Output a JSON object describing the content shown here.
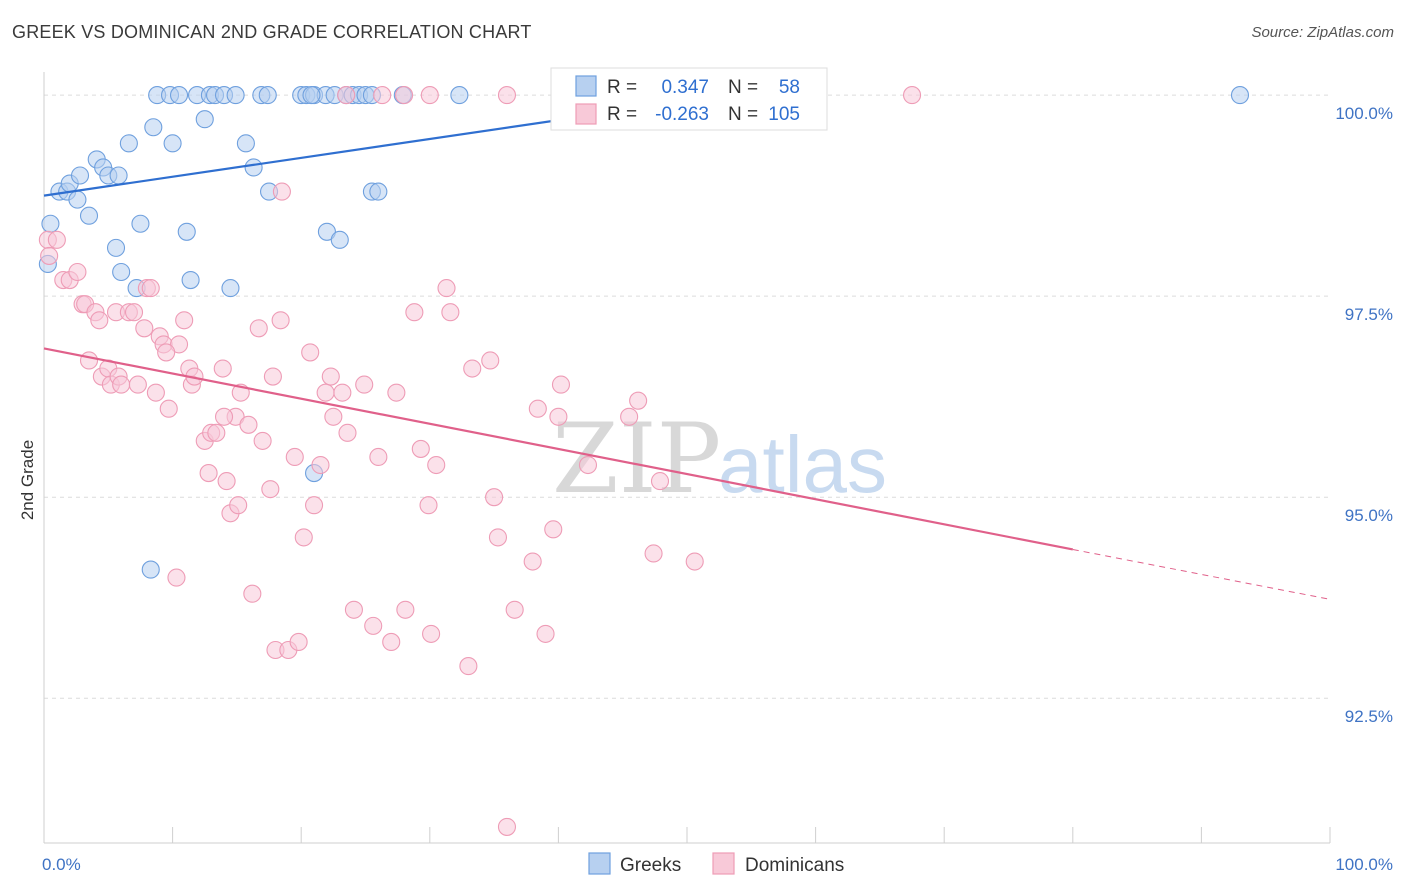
{
  "title": "GREEK VS DOMINICAN 2ND GRADE CORRELATION CHART",
  "source": "Source: ZipAtlas.com",
  "watermark": {
    "part1": "ZIP",
    "part2": "atlas"
  },
  "chart_data": {
    "type": "scatter",
    "title": "GREEK VS DOMINICAN 2ND GRADE CORRELATION CHART",
    "xlabel": "",
    "ylabel": "2nd Grade",
    "xlim": [
      0,
      100
    ],
    "ylim": [
      90.7,
      100.2
    ],
    "x_tick_labels": [
      "0.0%",
      "100.0%"
    ],
    "y_ticks": [
      92.5,
      95.0,
      97.5,
      100.0
    ],
    "y_tick_labels": [
      "92.5%",
      "95.0%",
      "97.5%",
      "100.0%"
    ],
    "grid": true,
    "legend_position": "bottom-center",
    "stats": [
      {
        "r_label": "R =",
        "r": "0.347",
        "n_label": "N =",
        "n": "58"
      },
      {
        "r_label": "R =",
        "r": "-0.263",
        "n_label": "N =",
        "n": "105"
      }
    ],
    "series": [
      {
        "name": "Greeks",
        "color": "#6fa0de",
        "fill": "#b7d0f0",
        "trend": {
          "x": [
            0,
            52
          ],
          "y": [
            98.75,
            99.97
          ],
          "color": "#2f6fd0"
        },
        "points": [
          [
            0.5,
            98.4
          ],
          [
            0.3,
            97.9
          ],
          [
            1.2,
            98.8
          ],
          [
            1.8,
            98.8
          ],
          [
            2.0,
            98.9
          ],
          [
            2.6,
            98.7
          ],
          [
            2.8,
            99.0
          ],
          [
            3.5,
            98.5
          ],
          [
            4.1,
            99.2
          ],
          [
            4.6,
            99.1
          ],
          [
            5.0,
            99.0
          ],
          [
            5.8,
            99.0
          ],
          [
            6.6,
            99.4
          ],
          [
            7.5,
            98.4
          ],
          [
            8.5,
            99.6
          ],
          [
            8.8,
            100.0
          ],
          [
            9.8,
            100.0
          ],
          [
            10.0,
            99.4
          ],
          [
            10.5,
            100.0
          ],
          [
            11.1,
            98.3
          ],
          [
            11.4,
            97.7
          ],
          [
            11.9,
            100.0
          ],
          [
            12.5,
            99.7
          ],
          [
            12.9,
            100.0
          ],
          [
            13.3,
            100.0
          ],
          [
            14.0,
            100.0
          ],
          [
            14.9,
            100.0
          ],
          [
            14.5,
            97.6
          ],
          [
            15.7,
            99.4
          ],
          [
            16.3,
            99.1
          ],
          [
            16.9,
            100.0
          ],
          [
            17.4,
            100.0
          ],
          [
            17.5,
            98.8
          ],
          [
            20.0,
            100.0
          ],
          [
            20.4,
            100.0
          ],
          [
            21.0,
            100.0
          ],
          [
            21.9,
            100.0
          ],
          [
            21.0,
            95.3
          ],
          [
            22.0,
            98.3
          ],
          [
            22.6,
            100.0
          ],
          [
            23.0,
            98.2
          ],
          [
            23.5,
            100.0
          ],
          [
            24.0,
            100.0
          ],
          [
            24.5,
            100.0
          ],
          [
            25.0,
            100.0
          ],
          [
            25.5,
            100.0
          ],
          [
            25.5,
            98.8
          ],
          [
            26.0,
            98.8
          ],
          [
            27.9,
            100.0
          ],
          [
            32.3,
            100.0
          ],
          [
            6.0,
            97.8
          ],
          [
            5.6,
            98.1
          ],
          [
            7.2,
            97.6
          ],
          [
            8.3,
            94.1
          ],
          [
            20.8,
            100.0
          ],
          [
            44.7,
            100.0
          ],
          [
            56.0,
            100.0
          ],
          [
            93.0,
            100.0
          ]
        ]
      },
      {
        "name": "Dominicans",
        "color": "#ee9cb6",
        "fill": "#f8c9d8",
        "trend": {
          "x": [
            0,
            80
          ],
          "y": [
            96.85,
            94.35
          ],
          "color": "#e0608a"
        },
        "trend_dash": {
          "x": [
            80,
            100
          ],
          "y": [
            94.35,
            93.73
          ]
        },
        "points": [
          [
            0.3,
            98.2
          ],
          [
            0.4,
            98.0
          ],
          [
            1.0,
            98.2
          ],
          [
            1.5,
            97.7
          ],
          [
            2.0,
            97.7
          ],
          [
            2.6,
            97.8
          ],
          [
            3.0,
            97.4
          ],
          [
            3.2,
            97.4
          ],
          [
            3.5,
            96.7
          ],
          [
            4.0,
            97.3
          ],
          [
            4.3,
            97.2
          ],
          [
            4.5,
            96.5
          ],
          [
            5.0,
            96.6
          ],
          [
            5.2,
            96.4
          ],
          [
            5.8,
            96.5
          ],
          [
            6.0,
            96.4
          ],
          [
            5.6,
            97.3
          ],
          [
            6.6,
            97.3
          ],
          [
            7.0,
            97.3
          ],
          [
            7.3,
            96.4
          ],
          [
            7.8,
            97.1
          ],
          [
            8.0,
            97.6
          ],
          [
            8.3,
            97.6
          ],
          [
            8.7,
            96.3
          ],
          [
            9.0,
            97.0
          ],
          [
            9.3,
            96.9
          ],
          [
            9.7,
            96.1
          ],
          [
            10.5,
            96.9
          ],
          [
            10.3,
            94.0
          ],
          [
            10.9,
            97.2
          ],
          [
            11.3,
            96.6
          ],
          [
            11.5,
            96.4
          ],
          [
            11.7,
            96.5
          ],
          [
            12.5,
            95.7
          ],
          [
            12.8,
            95.3
          ],
          [
            13.0,
            95.8
          ],
          [
            13.4,
            95.8
          ],
          [
            13.9,
            96.6
          ],
          [
            14.2,
            95.2
          ],
          [
            14.5,
            94.8
          ],
          [
            14.9,
            96.0
          ],
          [
            15.1,
            94.9
          ],
          [
            15.3,
            96.3
          ],
          [
            15.9,
            95.9
          ],
          [
            16.2,
            93.8
          ],
          [
            16.7,
            97.1
          ],
          [
            17.0,
            95.7
          ],
          [
            17.6,
            95.1
          ],
          [
            17.8,
            96.5
          ],
          [
            18.0,
            93.1
          ],
          [
            18.4,
            97.2
          ],
          [
            19.0,
            93.1
          ],
          [
            19.5,
            95.5
          ],
          [
            19.8,
            93.2
          ],
          [
            20.2,
            94.5
          ],
          [
            20.7,
            96.8
          ],
          [
            21.0,
            94.9
          ],
          [
            21.5,
            95.4
          ],
          [
            21.9,
            96.3
          ],
          [
            22.3,
            96.5
          ],
          [
            22.5,
            96.0
          ],
          [
            23.2,
            96.3
          ],
          [
            23.6,
            95.8
          ],
          [
            24.1,
            93.6
          ],
          [
            24.9,
            96.4
          ],
          [
            25.6,
            93.4
          ],
          [
            26.3,
            100.0
          ],
          [
            27.0,
            93.2
          ],
          [
            27.4,
            96.3
          ],
          [
            28.1,
            93.6
          ],
          [
            28.8,
            97.3
          ],
          [
            29.3,
            95.6
          ],
          [
            29.9,
            94.9
          ],
          [
            30.1,
            93.3
          ],
          [
            30.5,
            95.4
          ],
          [
            31.3,
            97.6
          ],
          [
            31.6,
            97.3
          ],
          [
            33.0,
            92.9
          ],
          [
            33.3,
            96.6
          ],
          [
            34.7,
            96.7
          ],
          [
            35.0,
            95.0
          ],
          [
            35.3,
            94.5
          ],
          [
            36.6,
            93.6
          ],
          [
            38.0,
            94.2
          ],
          [
            38.4,
            96.1
          ],
          [
            39.0,
            93.3
          ],
          [
            39.6,
            94.6
          ],
          [
            40.2,
            96.4
          ],
          [
            42.3,
            95.4
          ],
          [
            45.5,
            96.0
          ],
          [
            46.2,
            96.2
          ],
          [
            47.4,
            94.3
          ],
          [
            47.9,
            95.2
          ],
          [
            50.6,
            94.2
          ],
          [
            67.5,
            100.0
          ],
          [
            40.0,
            96.0
          ],
          [
            36.0,
            90.9
          ],
          [
            14.0,
            96.0
          ],
          [
            9.5,
            96.8
          ],
          [
            18.5,
            98.8
          ],
          [
            23.5,
            100.0
          ],
          [
            28.0,
            100.0
          ],
          [
            30.0,
            100.0
          ],
          [
            26.0,
            95.5
          ],
          [
            36.0,
            100.0
          ]
        ]
      }
    ]
  }
}
